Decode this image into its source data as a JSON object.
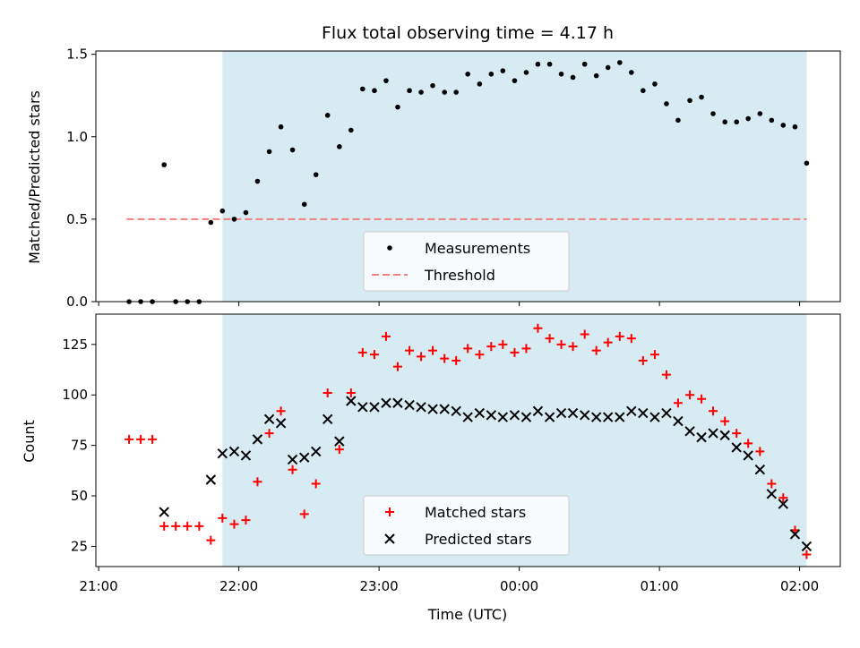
{
  "chart_data": [
    {
      "type": "scatter",
      "title": "Flux total observing time = 4.17 h",
      "xlabel": "",
      "ylabel": "Matched/Predicted stars",
      "xlim": [
        20.98,
        26.29
      ],
      "ylim": [
        0,
        1.52
      ],
      "yticks": [
        0.0,
        0.5,
        1.0,
        1.5
      ],
      "ytick_labels": [
        "0.0",
        "0.5",
        "1.0",
        "1.5"
      ],
      "observing_window": [
        21.883,
        26.05
      ],
      "threshold": {
        "value": 0.5,
        "x": [
          21.2,
          26.05
        ],
        "color": "#f08080"
      },
      "legend": {
        "position": "bottom-center",
        "entries": [
          "Measurements",
          "Threshold"
        ]
      },
      "series": [
        {
          "name": "Measurements",
          "marker": "dot",
          "color": "#000000",
          "x": [
            21.217,
            21.3,
            21.383,
            21.467,
            21.55,
            21.633,
            21.717,
            21.8,
            21.883,
            21.967,
            22.05,
            22.133,
            22.217,
            22.3,
            22.383,
            22.467,
            22.55,
            22.633,
            22.717,
            22.8,
            22.883,
            22.967,
            23.05,
            23.133,
            23.217,
            23.3,
            23.383,
            23.467,
            23.55,
            23.633,
            23.717,
            23.8,
            23.883,
            23.967,
            24.05,
            24.133,
            24.217,
            24.3,
            24.383,
            24.467,
            24.55,
            24.633,
            24.717,
            24.8,
            24.883,
            24.967,
            25.05,
            25.133,
            25.217,
            25.3,
            25.383,
            25.467,
            25.55,
            25.633,
            25.717,
            25.8,
            25.883,
            25.967,
            26.05
          ],
          "y": [
            0.0,
            0.0,
            0.0,
            0.83,
            0.0,
            0.0,
            0.0,
            0.48,
            0.55,
            0.5,
            0.54,
            0.73,
            0.91,
            1.06,
            0.92,
            0.59,
            0.77,
            1.13,
            0.94,
            1.04,
            1.29,
            1.28,
            1.34,
            1.18,
            1.28,
            1.27,
            1.31,
            1.27,
            1.27,
            1.38,
            1.32,
            1.38,
            1.4,
            1.34,
            1.39,
            1.44,
            1.44,
            1.38,
            1.36,
            1.44,
            1.37,
            1.42,
            1.45,
            1.39,
            1.28,
            1.32,
            1.2,
            1.1,
            1.22,
            1.24,
            1.14,
            1.09,
            1.09,
            1.11,
            1.14,
            1.1,
            1.07,
            1.06,
            0.84
          ]
        }
      ]
    },
    {
      "type": "scatter",
      "title": "",
      "xlabel": "Time (UTC)",
      "ylabel": "Count",
      "xlim": [
        20.98,
        26.29
      ],
      "ylim": [
        15,
        140
      ],
      "yticks": [
        25,
        50,
        75,
        100,
        125
      ],
      "ytick_labels": [
        "25",
        "50",
        "75",
        "100",
        "125"
      ],
      "xticks": [
        21,
        22,
        23,
        24,
        25,
        26
      ],
      "xtick_labels": [
        "21:00",
        "22:00",
        "23:00",
        "00:00",
        "01:00",
        "02:00"
      ],
      "observing_window": [
        21.883,
        26.05
      ],
      "legend": {
        "position": "bottom-center",
        "entries": [
          "Matched stars",
          "Predicted stars"
        ]
      },
      "series": [
        {
          "name": "Matched stars",
          "marker": "plus",
          "color": "#ff0000",
          "x": [
            21.217,
            21.3,
            21.383,
            21.467,
            21.55,
            21.633,
            21.717,
            21.8,
            21.883,
            21.967,
            22.05,
            22.133,
            22.217,
            22.3,
            22.383,
            22.467,
            22.55,
            22.633,
            22.717,
            22.8,
            22.883,
            22.967,
            23.05,
            23.133,
            23.217,
            23.3,
            23.383,
            23.467,
            23.55,
            23.633,
            23.717,
            23.8,
            23.883,
            23.967,
            24.05,
            24.133,
            24.217,
            24.3,
            24.383,
            24.467,
            24.55,
            24.633,
            24.717,
            24.8,
            24.883,
            24.967,
            25.05,
            25.133,
            25.217,
            25.3,
            25.383,
            25.467,
            25.55,
            25.633,
            25.717,
            25.8,
            25.883,
            25.967,
            26.05
          ],
          "y": [
            78,
            78,
            78,
            35,
            35,
            35,
            35,
            28,
            39,
            36,
            38,
            57,
            81,
            92,
            63,
            41,
            56,
            101,
            73,
            101,
            121,
            120,
            129,
            114,
            122,
            119,
            122,
            118,
            117,
            123,
            120,
            124,
            125,
            121,
            123,
            133,
            128,
            125,
            124,
            130,
            122,
            126,
            129,
            128,
            117,
            120,
            110,
            96,
            100,
            98,
            92,
            87,
            81,
            76,
            72,
            56,
            49,
            33,
            21
          ]
        },
        {
          "name": "Predicted stars",
          "marker": "x",
          "color": "#000000",
          "x": [
            21.467,
            21.8,
            21.883,
            21.967,
            22.05,
            22.133,
            22.217,
            22.3,
            22.383,
            22.467,
            22.55,
            22.633,
            22.717,
            22.8,
            22.883,
            22.967,
            23.05,
            23.133,
            23.217,
            23.3,
            23.383,
            23.467,
            23.55,
            23.633,
            23.717,
            23.8,
            23.883,
            23.967,
            24.05,
            24.133,
            24.217,
            24.3,
            24.383,
            24.467,
            24.55,
            24.633,
            24.717,
            24.8,
            24.883,
            24.967,
            25.05,
            25.133,
            25.217,
            25.3,
            25.383,
            25.467,
            25.55,
            25.633,
            25.717,
            25.8,
            25.883,
            25.967,
            26.05
          ],
          "y": [
            42,
            58,
            71,
            72,
            70,
            78,
            88,
            86,
            68,
            69,
            72,
            88,
            77,
            97,
            94,
            94,
            96,
            96,
            95,
            94,
            93,
            93,
            92,
            89,
            91,
            90,
            89,
            90,
            89,
            92,
            89,
            91,
            91,
            90,
            89,
            89,
            89,
            92,
            91,
            89,
            91,
            87,
            82,
            79,
            81,
            80,
            74,
            70,
            63,
            51,
            46,
            31,
            25
          ]
        }
      ]
    }
  ]
}
